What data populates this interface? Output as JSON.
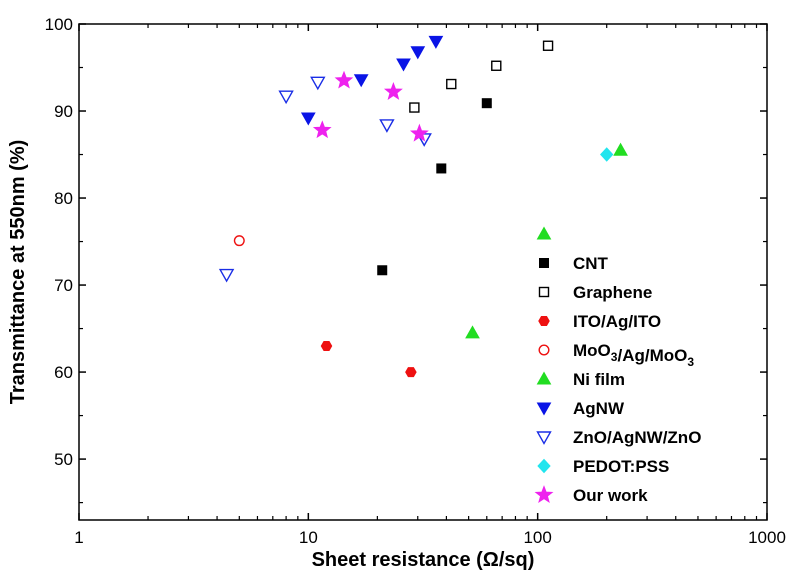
{
  "chart_data": {
    "type": "scatter",
    "xlabel": "Sheet resistance (Ω/sq)",
    "ylabel": "Transmittance at 550nm (%)",
    "xscale": "log",
    "xlim": [
      1,
      1000
    ],
    "ylim": [
      43,
      100
    ],
    "x_ticks": [
      "1",
      "10",
      "100",
      "1000"
    ],
    "y_ticks": [
      "50",
      "60",
      "70",
      "80",
      "90",
      "100"
    ],
    "grid": false,
    "legend_position": "lower-right",
    "series": [
      {
        "name": "",
        "marker": "triangle-up",
        "filled": true,
        "color": "#22dd22",
        "points": []
      },
      {
        "name": "CNT",
        "marker": "square",
        "filled": true,
        "color": "#000000",
        "points": [
          [
            21,
            71.7
          ],
          [
            38,
            83.4
          ],
          [
            60,
            90.9
          ]
        ]
      },
      {
        "name": "Graphene",
        "marker": "square",
        "filled": false,
        "color": "#000000",
        "points": [
          [
            29,
            90.4
          ],
          [
            42,
            93.1
          ],
          [
            66,
            95.2
          ],
          [
            111,
            97.5
          ]
        ]
      },
      {
        "name": "ITO/Ag/ITO",
        "marker": "hexagon",
        "filled": true,
        "color": "#ee1111",
        "points": [
          [
            12,
            63.0
          ],
          [
            28,
            60.0
          ]
        ]
      },
      {
        "name": "MoO3/Ag/MoO3",
        "marker": "circle",
        "filled": false,
        "color": "#ee1111",
        "points": [
          [
            5,
            75.1
          ]
        ]
      },
      {
        "name": "Ni film",
        "marker": "triangle-up",
        "filled": true,
        "color": "#22dd22",
        "points": [
          [
            52,
            64.5
          ],
          [
            230,
            85.5
          ]
        ]
      },
      {
        "name": "AgNW",
        "marker": "triangle-down",
        "filled": true,
        "color": "#0a14e6",
        "points": [
          [
            10,
            89.2
          ],
          [
            17,
            93.6
          ],
          [
            26,
            95.4
          ],
          [
            30,
            96.8
          ],
          [
            36,
            98.0
          ]
        ]
      },
      {
        "name": "ZnO/AgNW/ZnO",
        "marker": "triangle-down",
        "filled": false,
        "color": "#1a2ee6",
        "points": [
          [
            4.4,
            71.2
          ],
          [
            8,
            91.7
          ],
          [
            11,
            93.3
          ],
          [
            22,
            88.4
          ],
          [
            32,
            86.8
          ]
        ]
      },
      {
        "name": "PEDOT:PSS",
        "marker": "diamond",
        "filled": true,
        "color": "#22e5ee",
        "points": [
          [
            200,
            85.0
          ]
        ]
      },
      {
        "name": "Our work",
        "marker": "star",
        "filled": true,
        "color": "#ee22ee",
        "points": [
          [
            11.5,
            87.8
          ],
          [
            14.3,
            93.5
          ],
          [
            23.5,
            92.2
          ],
          [
            30.5,
            87.4
          ]
        ]
      }
    ]
  }
}
